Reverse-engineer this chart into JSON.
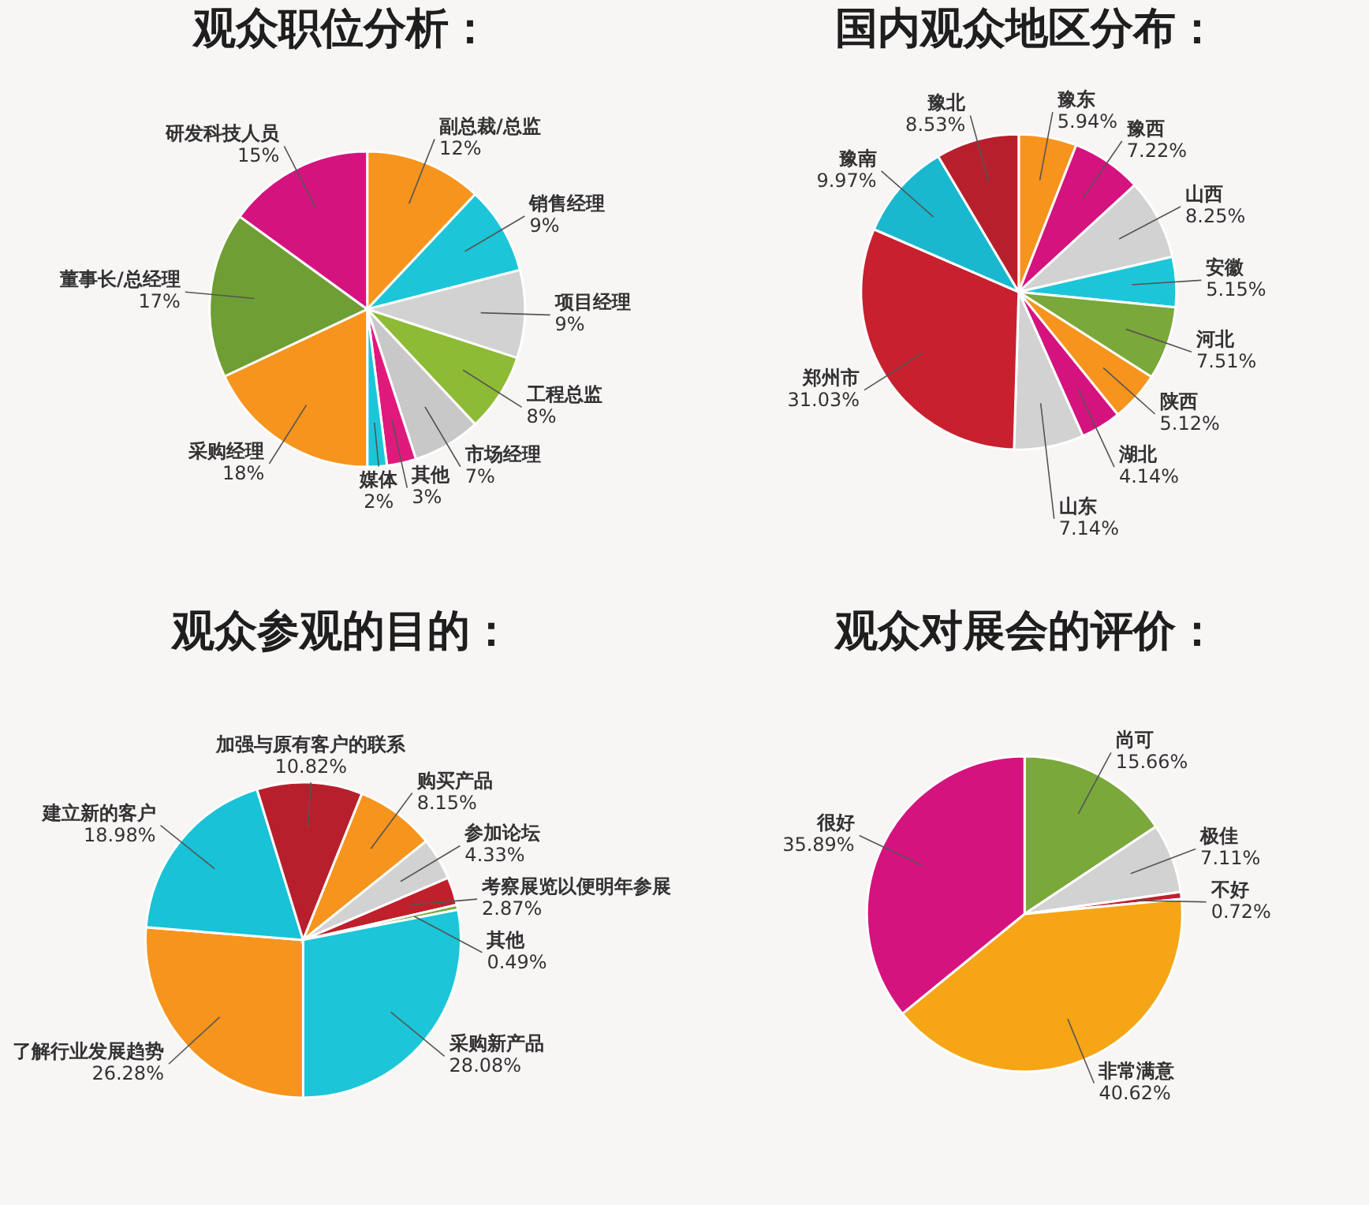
{
  "chart_data": [
    {
      "type": "pie",
      "title": "观众职位分析：",
      "categories": [
        "副总裁/总监",
        "销售经理",
        "项目经理",
        "工程总监",
        "市场经理",
        "其他",
        "媒体",
        "采购经理",
        "董事长/总经理",
        "研发科技人员"
      ],
      "values": [
        12,
        9,
        9,
        8,
        7,
        3,
        2,
        18,
        17,
        15
      ],
      "value_labels": [
        "12%",
        "9%",
        "9%",
        "8%",
        "7%",
        "3%",
        "2%",
        "18%",
        "17%",
        "15%"
      ],
      "colors": [
        "#f7941d",
        "#1cc6d8",
        "#d2d2d2",
        "#8dbb35",
        "#c8c8c8",
        "#e0197d",
        "#1cc6d8",
        "#f7941d",
        "#6f9e35",
        "#d4137f"
      ]
    },
    {
      "type": "pie",
      "title": "国内观众地区分布：",
      "categories": [
        "豫东",
        "豫西",
        "山西",
        "安徽",
        "河北",
        "陕西",
        "湖北",
        "山东",
        "郑州市",
        "豫南",
        "豫北"
      ],
      "values": [
        5.94,
        7.22,
        8.25,
        5.15,
        7.51,
        5.12,
        4.14,
        7.14,
        31.03,
        9.97,
        8.53
      ],
      "value_labels": [
        "5.94%",
        "7.22%",
        "8.25%",
        "5.15%",
        "7.51%",
        "5.12%",
        "4.14%",
        "7.14%",
        "31.03%",
        "9.97%",
        "8.53%"
      ],
      "colors": [
        "#f7941d",
        "#d4137f",
        "#d2d2d2",
        "#1cc6d8",
        "#7aa83a",
        "#f7941d",
        "#d4137f",
        "#d2d2d2",
        "#c8202f",
        "#19b8cf",
        "#b81f2c"
      ]
    },
    {
      "type": "pie",
      "title": "观众参观的目的：",
      "categories": [
        "了解行业发展趋势",
        "建立新的客户",
        "加强与原有客户的联系",
        "购买产品",
        "参加论坛",
        "考察展览以便明年参展",
        "其他",
        "采购新产品"
      ],
      "values": [
        26.28,
        18.98,
        10.82,
        8.15,
        4.33,
        2.87,
        0.49,
        28.08
      ],
      "value_labels": [
        "26.28%",
        "18.98%",
        "10.82%",
        "8.15%",
        "4.33%",
        "2.87%",
        "0.49%",
        "28.08%"
      ],
      "colors": [
        "#f7941d",
        "#19c2d6",
        "#b81f2c",
        "#f7941d",
        "#d2d2d2",
        "#c0202c",
        "#7aa83a",
        "#1cc6d8"
      ]
    },
    {
      "type": "pie",
      "title": "观众对展会的评价：",
      "categories": [
        "尚可",
        "极佳",
        "不好",
        "非常满意",
        "很好"
      ],
      "values": [
        15.66,
        7.11,
        0.72,
        40.62,
        35.89
      ],
      "value_labels": [
        "15.66%",
        "7.11%",
        "0.72%",
        "40.62%",
        "35.89%"
      ],
      "colors": [
        "#7aa83a",
        "#d2d2d2",
        "#c0202c",
        "#f5a516",
        "#d4137f"
      ]
    }
  ]
}
